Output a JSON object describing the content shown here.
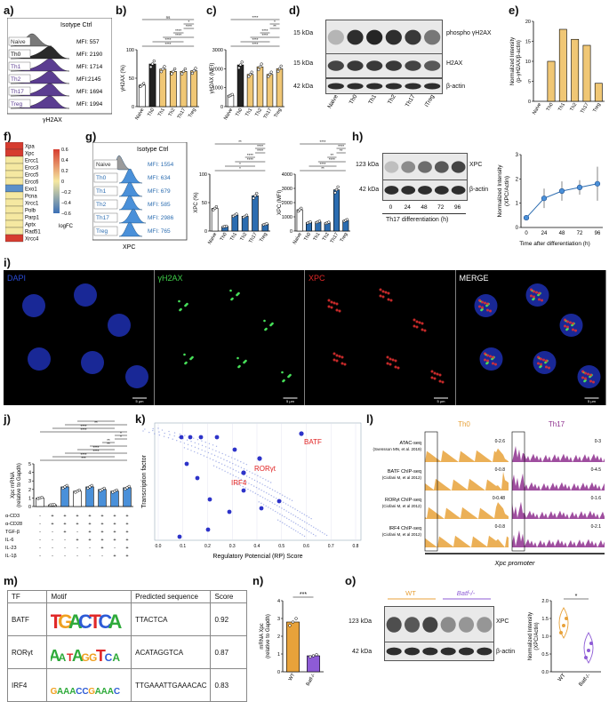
{
  "panels": {
    "a": "a)",
    "b": "b)",
    "c": "c)",
    "d": "d)",
    "e": "e)",
    "f": "f)",
    "g": "g)",
    "h": "h)",
    "i": "i)",
    "j": "j)",
    "k": "k)",
    "l": "l)",
    "m": "m)",
    "n": "n)",
    "o": "o)"
  },
  "panel_a": {
    "title": "Isotype Ctrl",
    "xlabel": "γH2AX",
    "rows": [
      {
        "name": "Naive",
        "mfi": "MFI: 557",
        "color": "#7a7a7a"
      },
      {
        "name": "Th0",
        "mfi": "MFI: 2190",
        "color": "#2a2a2a"
      },
      {
        "name": "Th1",
        "mfi": "MFI: 1714",
        "color": "#5b3d91"
      },
      {
        "name": "Th2",
        "mfi": "MFI:2145",
        "color": "#5b3d91"
      },
      {
        "name": "Th17",
        "mfi": "MFI: 1694",
        "color": "#5b3d91"
      },
      {
        "name": "Treg",
        "mfi": "MFI: 1994",
        "color": "#5b3d91"
      }
    ]
  },
  "chart_b": {
    "type": "bar",
    "ylabel": "γH2AX (%)",
    "categories": [
      "Naive",
      "Th0",
      "Th1",
      "Th2",
      "Th17",
      "Treg"
    ],
    "values": [
      38,
      75,
      66,
      62,
      62,
      63
    ],
    "ylim": [
      0,
      100
    ],
    "yticks": [
      "0",
      "50",
      "100"
    ],
    "sig": [
      "****",
      "****",
      "****",
      "****",
      "****",
      "*",
      "ns"
    ]
  },
  "chart_c": {
    "type": "bar",
    "ylabel": "γH2AX (MFI)",
    "categories": [
      "Naive",
      "Th0",
      "Th1",
      "Th2",
      "Th17",
      "Treg"
    ],
    "values": [
      600,
      2200,
      1700,
      2100,
      1700,
      2000
    ],
    "ylim": [
      0,
      3000
    ],
    "yticks": [
      "0",
      "1000",
      "2000",
      "3000"
    ],
    "sig": [
      "****",
      "****",
      "****",
      "****",
      "**",
      "*",
      "****"
    ]
  },
  "panel_d": {
    "kda": [
      "15 kDa",
      "15 kDa",
      "42 kDa"
    ],
    "bands": [
      "phospho γH2AX",
      "H2AX",
      "β-actin"
    ],
    "lanes": [
      "Naive",
      "Th0",
      "Th1",
      "Th2",
      "Th17",
      "iTreg"
    ]
  },
  "chart_e": {
    "type": "bar",
    "ylabel": "Normalized Intensity",
    "ylabel2": "(p-γH2AX/β-actin)",
    "categories": [
      "Naive",
      "Th0",
      "Th1",
      "Th2",
      "Th17",
      "Treg"
    ],
    "values": [
      0,
      10,
      18,
      15.5,
      14,
      4.5
    ],
    "ylim": [
      0,
      20
    ],
    "yticks": [
      "0",
      "5",
      "10",
      "15",
      "20"
    ],
    "color": "#f0c775"
  },
  "panel_f": {
    "genes": [
      "Xpa",
      "Xpc",
      "Ercc1",
      "Ercc3",
      "Ercc5",
      "Ercc6",
      "Exo1",
      "Pcna",
      "Xrcc1",
      "Polb",
      "Parp1",
      "Aptx",
      "Rad51",
      "Xrcc4"
    ],
    "colors": [
      "#d63c2f",
      "#d63c2f",
      "#f5e8a1",
      "#f5e8a1",
      "#f5e8a1",
      "#f5e8a1",
      "#5b8fc9",
      "#f5e8a1",
      "#f5e8a1",
      "#f5e8a1",
      "#f5e8a1",
      "#f5e8a1",
      "#f5e8a1",
      "#d63c2f"
    ],
    "scale": [
      "0.6",
      "0.4",
      "0.2",
      "0",
      "−0.2",
      "−0.4",
      "−0.6"
    ],
    "scale_label": "logFC"
  },
  "panel_g": {
    "title": "Isotype Ctrl",
    "xlabel": "XPC",
    "rows": [
      {
        "name": "Naive",
        "mfi": "MFI: 1554"
      },
      {
        "name": "Th0",
        "mfi": "MFI: 634"
      },
      {
        "name": "Th1",
        "mfi": "MFI: 679"
      },
      {
        "name": "Th2",
        "mfi": "MFI: 585"
      },
      {
        "name": "Th17",
        "mfi": "MFI: 2986"
      },
      {
        "name": "Treg",
        "mfi": "MFI: 765"
      }
    ]
  },
  "chart_g1": {
    "type": "bar",
    "ylabel": "XPC (%)",
    "categories": [
      "Naive",
      "Th0",
      "Th1",
      "Th2",
      "Th17",
      "Treg"
    ],
    "values": [
      40,
      8,
      28,
      26,
      62,
      12
    ],
    "ylim": [
      0,
      100
    ],
    "yticks": [
      "0",
      "50",
      "100"
    ],
    "sig": [
      "*",
      "*",
      "****",
      "****",
      "****",
      "****",
      "**"
    ]
  },
  "chart_g2": {
    "type": "bar",
    "ylabel": "XPC (MFI)",
    "categories": [
      "Naive",
      "Th0",
      "Th1",
      "Th2",
      "Th17",
      "Treg"
    ],
    "values": [
      1500,
      600,
      650,
      580,
      2900,
      750
    ],
    "ylim": [
      0,
      4000
    ],
    "yticks": [
      "0",
      "1000",
      "2000",
      "3000",
      "4000"
    ],
    "sig": [
      "**",
      "****",
      "****",
      "**",
      "**",
      "****",
      "****"
    ]
  },
  "panel_h": {
    "kda": [
      "123 kDa",
      "42 kDa"
    ],
    "bands": [
      "XPC",
      "β-actin"
    ],
    "lanes": [
      "0",
      "24",
      "48",
      "72",
      "96"
    ],
    "xlabel": "Th17 differentiation (h)"
  },
  "chart_h": {
    "type": "line",
    "ylabel": "Normalized Intensity",
    "ylabel2": "(XPC/Actin)",
    "xlabel": "Time after differentiation (h)",
    "x": [
      0,
      24,
      48,
      72,
      96
    ],
    "y": [
      0.4,
      1.2,
      1.5,
      1.65,
      1.8
    ],
    "err": [
      0.1,
      0.4,
      0.4,
      0.3,
      0.7
    ],
    "ylim": [
      0,
      3
    ],
    "yticks": [
      "0",
      "1",
      "2",
      "3"
    ],
    "xticks": [
      "0",
      "24",
      "48",
      "72",
      "96"
    ]
  },
  "panel_i": {
    "channels": [
      "DAPI",
      "γH2AX",
      "XPC",
      "MERGE"
    ],
    "colors": [
      "#2a4bd6",
      "#3fcf4a",
      "#e02828",
      "#ffffff"
    ],
    "scalebar": "5 µm"
  },
  "chart_j": {
    "type": "bar",
    "ylabel": "Xpc mRNA",
    "ylabel2": "(relative to Gapdh)",
    "values": [
      1.0,
      0.2,
      2.3,
      1.8,
      2.3,
      2.0,
      1.8,
      2.2
    ],
    "ylim": [
      0,
      5
    ],
    "yticks": [
      "0",
      "1",
      "2",
      "3",
      "4",
      "5"
    ],
    "conditions": [
      "α-CD3",
      "α-CD28",
      "TGF-β",
      "IL-6",
      "IL-23",
      "IL-1β"
    ],
    "matrix": [
      [
        "-",
        "+",
        "+",
        "+",
        "+",
        "+",
        "+",
        "+"
      ],
      [
        "-",
        "+",
        "+",
        "+",
        "+",
        "+",
        "+",
        "+"
      ],
      [
        "-",
        "-",
        "+",
        "-",
        "+",
        "+",
        "+",
        "+"
      ],
      [
        "-",
        "-",
        "-",
        "+",
        "+",
        "+",
        "+",
        "+"
      ],
      [
        "-",
        "-",
        "-",
        "-",
        "-",
        "+",
        "-",
        "+"
      ],
      [
        "-",
        "-",
        "-",
        "-",
        "-",
        "-",
        "+",
        "+"
      ]
    ],
    "sig": [
      "***",
      "****",
      "****",
      "****",
      "**",
      "**",
      "*",
      "*",
      "****",
      "****",
      "**",
      "****"
    ]
  },
  "chart_k": {
    "type": "scatter",
    "ylabel": "Transcription factor",
    "xlabel": "Regulatory Potencial (RP) Score",
    "xticks": [
      "0.0",
      "0.1",
      "0.2",
      "0.3",
      "0.4",
      "0.5",
      "0.6",
      "0.7",
      "0.8"
    ],
    "labels": [
      "BATF",
      "RORγt",
      "IRF4"
    ]
  },
  "panel_l": {
    "col1": "Th0",
    "col2": "Th17",
    "col1_color": "#e8a23a",
    "col2_color": "#8e2f8e",
    "tracks": [
      {
        "name": "ATAC-seq",
        "cite": "(Svensson MN, et al. 2019)",
        "r1": "0-2.6",
        "r2": "0-3"
      },
      {
        "name": "BATF ChIP-seq",
        "cite": "(Ciofani M, et al 2012)",
        "r1": "0-0.8",
        "r2": "0-4.5"
      },
      {
        "name": "RORγt ChIP-seq",
        "cite": "(Ciofani M, et al 2012)",
        "r1": "0-0.48",
        "r2": "0-1.6"
      },
      {
        "name": "IRF4 ChIP-seq",
        "cite": "(Ciofani M, et al 2012)",
        "r1": "0-0.8",
        "r2": "0-2.1"
      }
    ],
    "footer": "Xpc promoter"
  },
  "panel_m": {
    "headers": [
      "TF",
      "Motif",
      "Predicted sequence",
      "Score"
    ],
    "rows": [
      {
        "tf": "BATF",
        "seq": "TTACTCA",
        "score": "0.92"
      },
      {
        "tf": "RORγt",
        "seq": "ACATAGGTCA",
        "score": "0.87"
      },
      {
        "tf": "IRF4",
        "seq": "TTGAAATTGAAACAC",
        "score": "0.83"
      }
    ]
  },
  "chart_n": {
    "type": "bar",
    "ylabel": "mRNA Xpc",
    "ylabel2": "(relative to Gapdh)",
    "categories": [
      "WT",
      "Batf-/-"
    ],
    "values": [
      2.8,
      0.9
    ],
    "ylim": [
      0,
      4
    ],
    "yticks": [
      "0",
      "1",
      "2",
      "3",
      "4"
    ],
    "sig": "***",
    "colors": [
      "#e8a23a",
      "#8e5bd6"
    ]
  },
  "panel_o": {
    "groups": [
      "WT",
      "Batf-/-"
    ],
    "kda": [
      "123 kDa",
      "42 kDa"
    ],
    "bands": [
      "XPC",
      "β-actin"
    ]
  },
  "chart_o": {
    "type": "violin",
    "ylabel": "Normalized Intensity",
    "ylabel2": "(XPC/Actin)",
    "categories": [
      "WT",
      "Batf-/-"
    ],
    "values": [
      1.3,
      0.6
    ],
    "ylim": [
      0.0,
      2.0
    ],
    "yticks": [
      "0.0",
      "0.5",
      "1.0",
      "1.5",
      "2.0"
    ],
    "sig": "*"
  }
}
